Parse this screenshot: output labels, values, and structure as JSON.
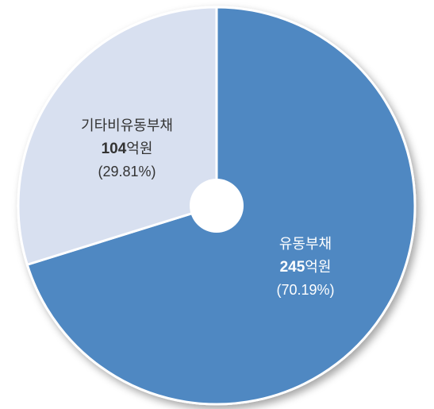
{
  "chart_data": {
    "type": "pie",
    "donut": true,
    "unit": "억원",
    "slices": [
      {
        "name": "유동부채",
        "value": 245,
        "percent_label": "(70.19%)",
        "color": "#4f88c2",
        "text_color": "#ffffff"
      },
      {
        "name": "기타비유동부채",
        "value": 104,
        "percent_label": "(29.81%)",
        "color": "#d8e0f0",
        "text_color": "#333333"
      }
    ]
  }
}
